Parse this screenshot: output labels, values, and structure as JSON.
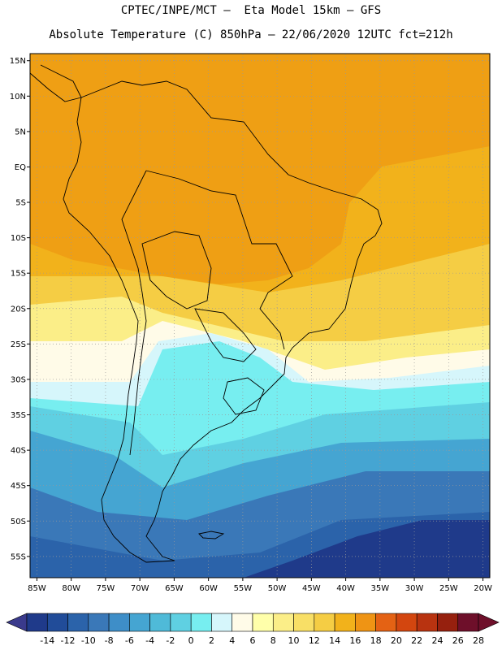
{
  "header": {
    "line1": "CPTEC/INPE/MCT –  Eta Model 15km – GFS",
    "line2": "Absolute Temperature (C) 850hPa – 22/06/2020 12UTC fct=212h"
  },
  "map": {
    "lat_labels": [
      "15N",
      "10N",
      "5N",
      "EQ",
      "5S",
      "10S",
      "15S",
      "20S",
      "25S",
      "30S",
      "35S",
      "40S",
      "45S",
      "50S",
      "55S"
    ],
    "lon_labels": [
      "85W",
      "80W",
      "75W",
      "70W",
      "65W",
      "60W",
      "55W",
      "50W",
      "45W",
      "40W",
      "35W",
      "30W",
      "25W",
      "20W"
    ],
    "extent": {
      "lon_min": -86,
      "lon_max": -19,
      "lat_min": -58,
      "lat_max": 16
    }
  },
  "colorbar": {
    "labels": [
      "-14",
      "-12",
      "-10",
      "-8",
      "-6",
      "-4",
      "-2",
      "0",
      "2",
      "4",
      "6",
      "8",
      "10",
      "12",
      "14",
      "16",
      "18",
      "20",
      "22",
      "24",
      "26",
      "28"
    ],
    "low_color": "#3a3a8c",
    "high_color": "#6e0f2a",
    "colors": [
      "#1f3a8a",
      "#214c99",
      "#2b63aa",
      "#3a78b8",
      "#3e8ec8",
      "#45a5d2",
      "#4fbad8",
      "#5fd0e2",
      "#77eef0",
      "#d6f6fb",
      "#fffbe8",
      "#ffffaa",
      "#fbee88",
      "#f8df66",
      "#f5cd44",
      "#f2b21b",
      "#ef9414",
      "#e46214",
      "#d3460f",
      "#b83310",
      "#96200e",
      "#6e0f2a"
    ]
  }
}
